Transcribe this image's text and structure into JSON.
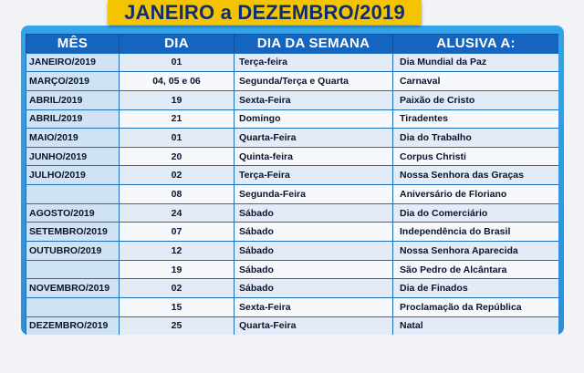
{
  "title": "JANEIRO a DEZEMBRO/2019",
  "headers": [
    "MÊS",
    "DIA",
    "DIA DA SEMANA",
    "ALUSIVA A:"
  ],
  "rows": [
    {
      "mes": "JANEIRO/2019",
      "dia": "01",
      "semana": "Terça-feira",
      "alusiva": "Dia Mundial da Paz"
    },
    {
      "mes": "MARÇO/2019",
      "dia": "04, 05 e 06",
      "semana": "Segunda/Terça e Quarta",
      "alusiva": "Carnaval"
    },
    {
      "mes": "ABRIL/2019",
      "dia": "19",
      "semana": "Sexta-Feira",
      "alusiva": "Paixão de Cristo"
    },
    {
      "mes": "ABRIL/2019",
      "dia": "21",
      "semana": "Domingo",
      "alusiva": "Tiradentes"
    },
    {
      "mes": "MAIO/2019",
      "dia": "01",
      "semana": "Quarta-Feira",
      "alusiva": "Dia do Trabalho"
    },
    {
      "mes": "JUNHO/2019",
      "dia": "20",
      "semana": "Quinta-feira",
      "alusiva": "Corpus Christi"
    },
    {
      "mes": "JULHO/2019",
      "dia": "02",
      "semana": "Terça-Feira",
      "alusiva": "Nossa Senhora das Graças"
    },
    {
      "mes": "",
      "dia": "08",
      "semana": "Segunda-Feira",
      "alusiva": "Aniversário de Floriano"
    },
    {
      "mes": "AGOSTO/2019",
      "dia": "24",
      "semana": "Sábado",
      "alusiva": "Dia do Comerciário"
    },
    {
      "mes": "SETEMBRO/2019",
      "dia": "07",
      "semana": "Sábado",
      "alusiva": "Independência do Brasil"
    },
    {
      "mes": "OUTUBRO/2019",
      "dia": "12",
      "semana": "Sábado",
      "alusiva": "Nossa Senhora Aparecida"
    },
    {
      "mes": "",
      "dia": "19",
      "semana": "Sábado",
      "alusiva": "São Pedro de Alcântara"
    },
    {
      "mes": "NOVEMBRO/2019",
      "dia": "02",
      "semana": "Sábado",
      "alusiva": "Dia de Finados"
    },
    {
      "mes": "",
      "dia": "15",
      "semana": "Sexta-Feira",
      "alusiva": "Proclamação da República"
    },
    {
      "mes": "DEZEMBRO/2019",
      "dia": "25",
      "semana": "Quarta-Feira",
      "alusiva": "Natal"
    }
  ],
  "colors": {
    "banner": "#f5c400",
    "panel": "#2a8fd9",
    "header": "#1565c0"
  }
}
